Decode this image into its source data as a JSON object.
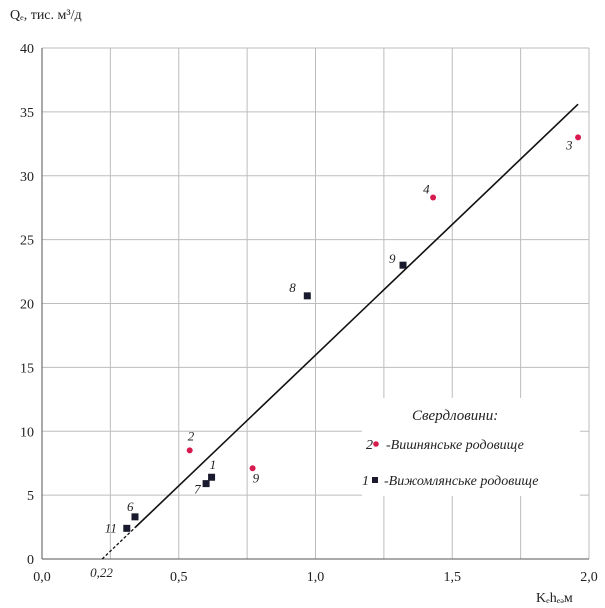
{
  "chart_data": {
    "type": "scatter",
    "ylabel": "Qₑ, тис. м³/д",
    "xlabel": "Kₑhₑₔм",
    "xlim": [
      0.0,
      2.0
    ],
    "ylim": [
      0,
      40
    ],
    "x_ticks": [
      {
        "value": 0.0,
        "label": "0,0"
      },
      {
        "value": 0.5,
        "label": "0,5"
      },
      {
        "value": 1.0,
        "label": "1,0"
      },
      {
        "value": 1.5,
        "label": "1,5"
      },
      {
        "value": 2.0,
        "label": "2,0"
      }
    ],
    "y_ticks": [
      0,
      5,
      10,
      15,
      20,
      25,
      30,
      35,
      40
    ],
    "grid": true,
    "grid_x_minor": [
      0.25,
      0.75,
      1.25,
      1.75
    ],
    "fit_line": {
      "x0": 0.22,
      "y0": 0,
      "x1": 1.96,
      "y1": 35.6
    },
    "intercept_annotation": {
      "x": 0.22,
      "label": "0,22"
    },
    "series": [
      {
        "name": "-Вишнянське родовище",
        "legend_number": "2",
        "marker": "circle",
        "color": "#d81b4f",
        "points": [
          {
            "x": 0.54,
            "y": 8.5,
            "label": "2"
          },
          {
            "x": 1.96,
            "y": 33.0,
            "label": "3"
          },
          {
            "x": 1.43,
            "y": 28.3,
            "label": "4"
          },
          {
            "x": 0.77,
            "y": 7.1,
            "label": "9"
          }
        ]
      },
      {
        "name": "-Вижомлянське родовище",
        "legend_number": "1",
        "marker": "square",
        "color": "#1a1a2e",
        "points": [
          {
            "x": 0.62,
            "y": 6.4,
            "label": "1"
          },
          {
            "x": 0.6,
            "y": 5.9,
            "label": "7"
          },
          {
            "x": 0.34,
            "y": 3.3,
            "label": "6"
          },
          {
            "x": 0.31,
            "y": 2.4,
            "label": "11"
          },
          {
            "x": 0.97,
            "y": 20.6,
            "label": "8"
          },
          {
            "x": 1.32,
            "y": 23.0,
            "label": "9"
          }
        ]
      }
    ],
    "legend": {
      "title": "Свердловини:",
      "placement": "lower-right"
    }
  }
}
